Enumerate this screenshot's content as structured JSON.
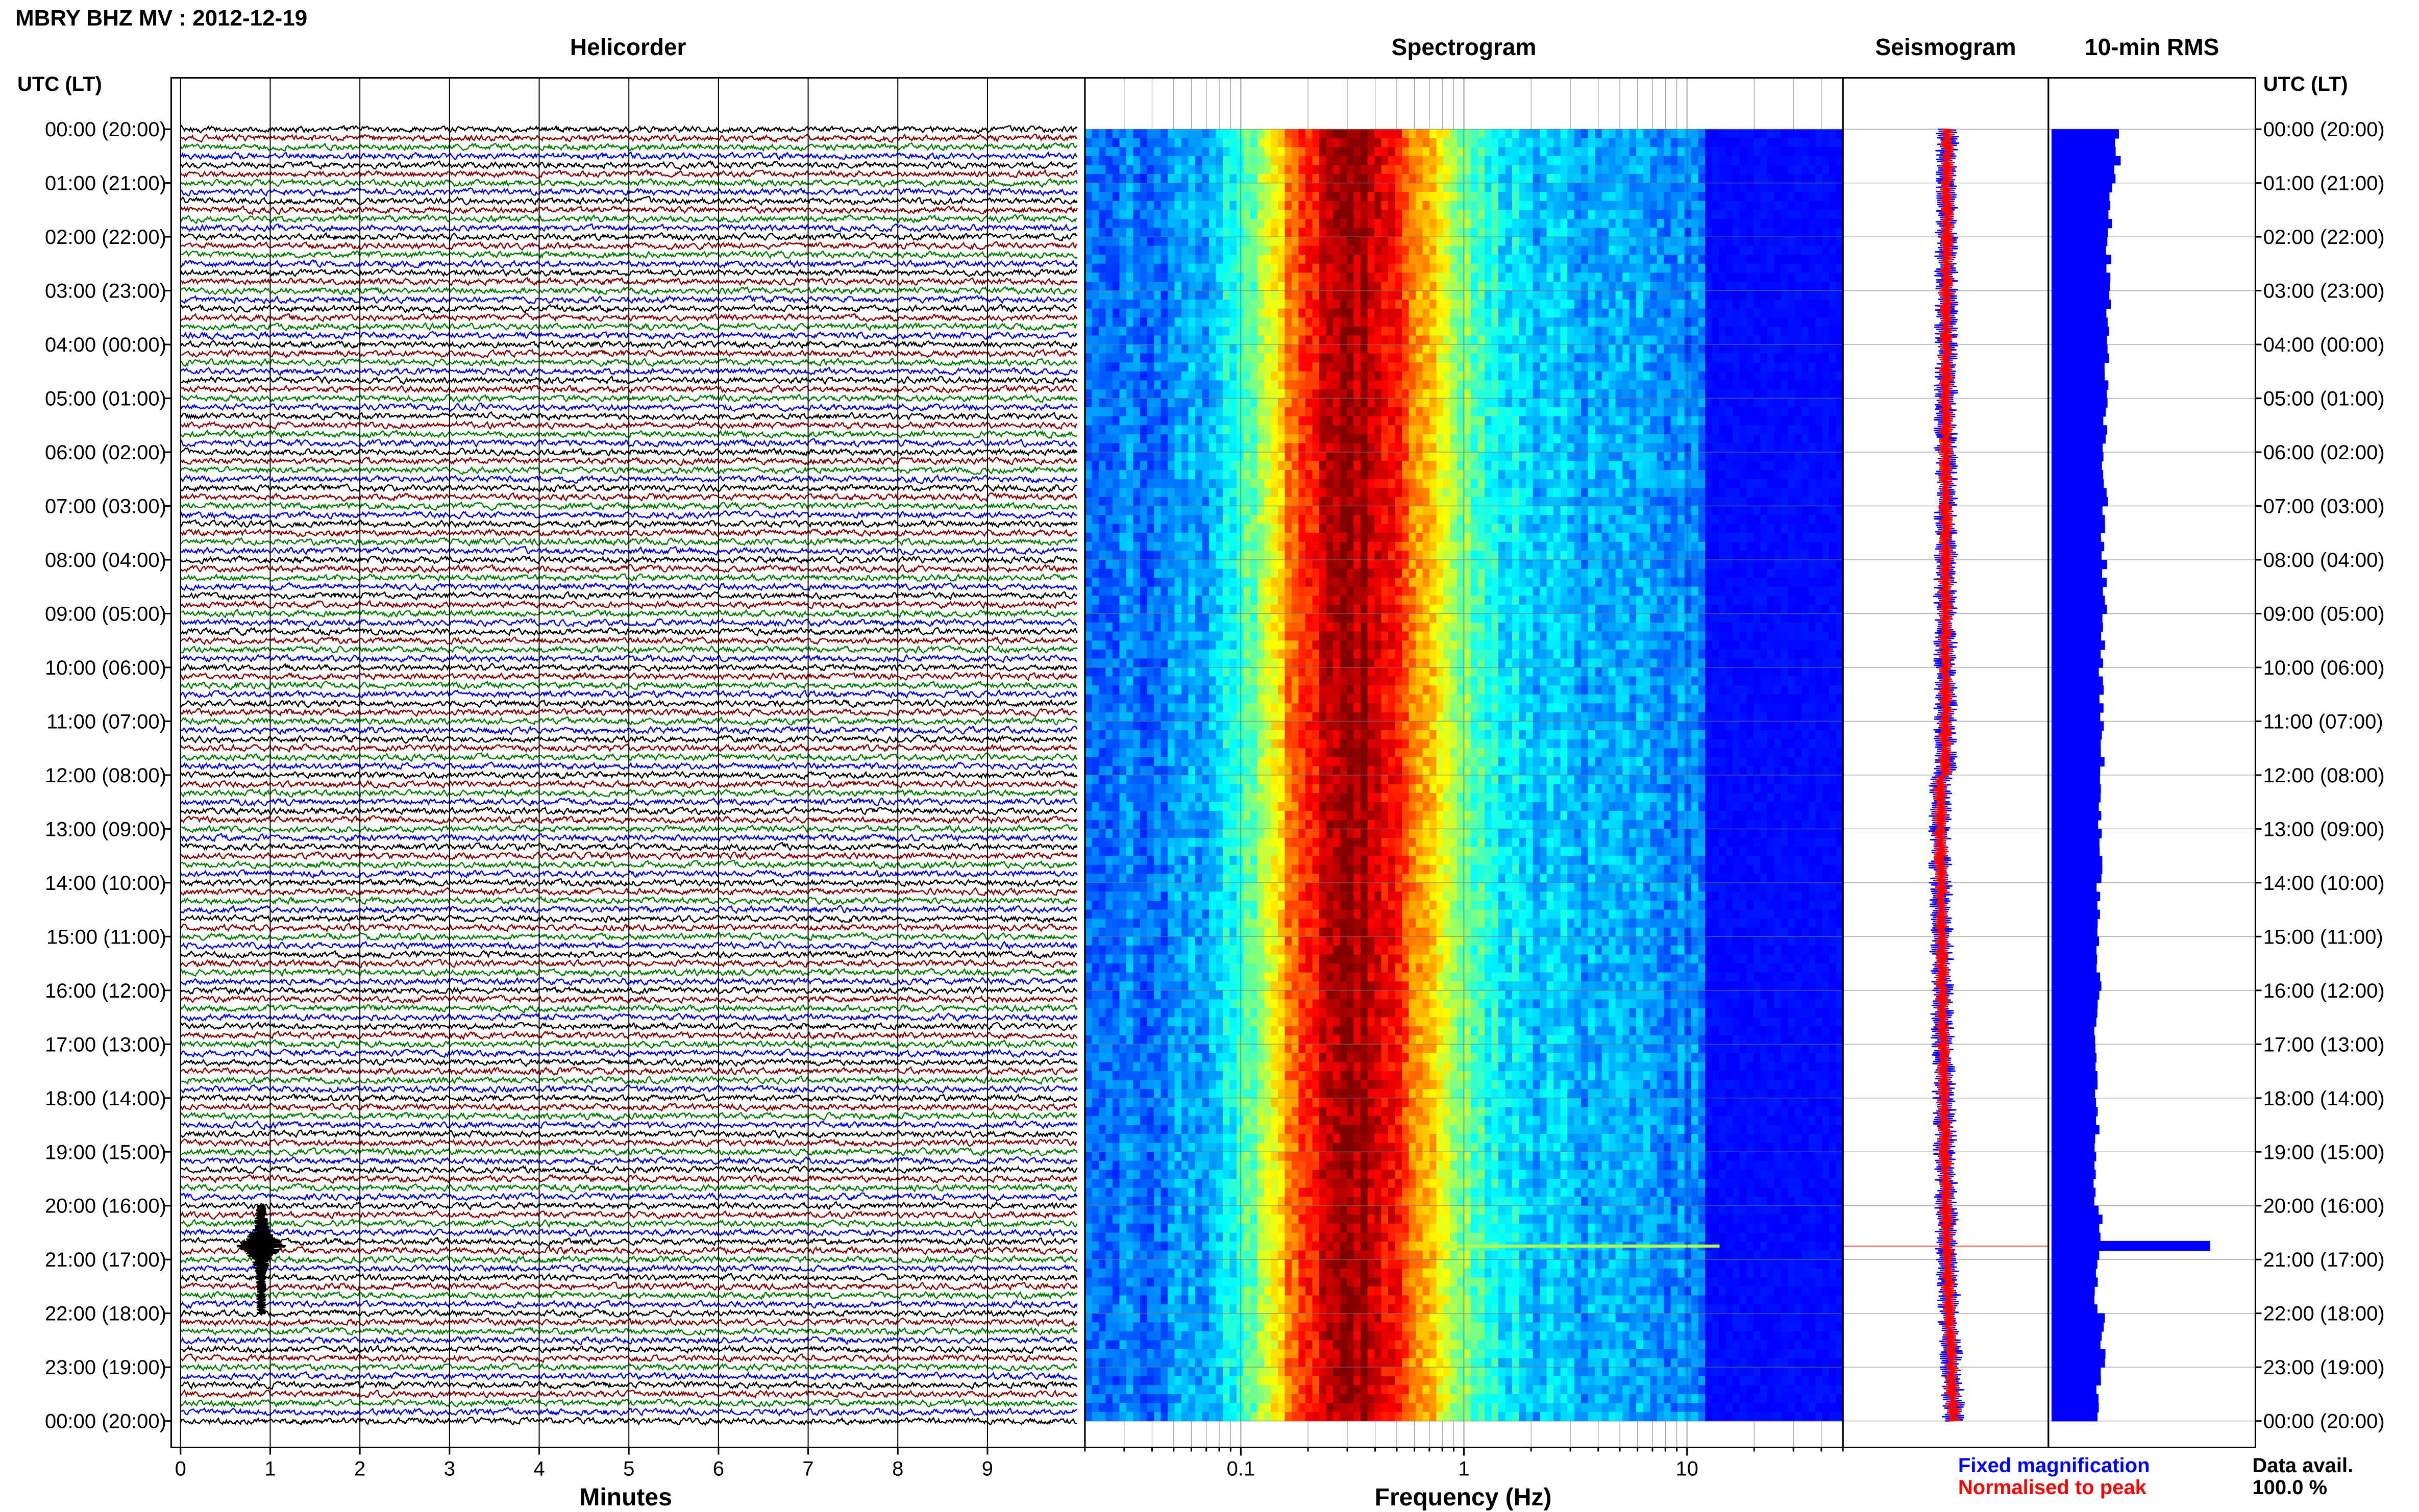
{
  "title": "MBRY BHZ MV : 2012-12-19",
  "panels": {
    "helicorder": "Helicorder",
    "spectrogram": "Spectrogram",
    "seismogram": "Seismogram",
    "rms": "10-min RMS"
  },
  "axis": {
    "time_header_left": "UTC (LT)",
    "time_header_right": "UTC (LT)",
    "minutes_label": "Minutes",
    "frequency_label": "Frequency (Hz)"
  },
  "time_labels": [
    "00:00 (20:00)",
    "01:00 (21:00)",
    "02:00 (22:00)",
    "03:00 (23:00)",
    "04:00 (00:00)",
    "05:00 (01:00)",
    "06:00 (02:00)",
    "07:00 (03:00)",
    "08:00 (04:00)",
    "09:00 (05:00)",
    "10:00 (06:00)",
    "11:00 (07:00)",
    "12:00 (08:00)",
    "13:00 (09:00)",
    "14:00 (10:00)",
    "15:00 (11:00)",
    "16:00 (12:00)",
    "17:00 (13:00)",
    "18:00 (14:00)",
    "19:00 (15:00)",
    "20:00 (16:00)",
    "21:00 (17:00)",
    "22:00 (18:00)",
    "23:00 (19:00)",
    "00:00 (20:00)"
  ],
  "legend": {
    "fixed": "Fixed magnification",
    "normalised": "Normalised to peak",
    "fixed_color": "#0000ff",
    "normalised_color": "#ff0000"
  },
  "data_avail": {
    "label": "Data avail.",
    "value": "100.0 %"
  },
  "chart_data": {
    "type": "helicorder",
    "station": "MBRY BHZ MV",
    "date": "2012-12-19",
    "helicorder": {
      "x_ticks": [
        0,
        1,
        2,
        3,
        4,
        5,
        6,
        7,
        8,
        9
      ],
      "xlim_minutes": [
        0,
        10
      ],
      "rows_per_hour": 6,
      "hours": 24,
      "trace_colors": [
        "#000000",
        "#8b0000",
        "#008000",
        "#0000ff"
      ],
      "event": {
        "hour_start": 20.0,
        "hour_end": 22.0,
        "minute": 0.9,
        "peak_hour": 20.75
      }
    },
    "spectrogram": {
      "x_scale": "log",
      "xlim_hz": [
        0.02,
        50
      ],
      "x_ticks": [
        0.1,
        1,
        10
      ],
      "x_tick_labels": [
        "0.1",
        "1",
        "10"
      ],
      "colormap": "jet",
      "peak_band_hz": [
        0.2,
        0.5
      ],
      "event_hour": 20.75
    },
    "seismogram": {
      "series": [
        {
          "name": "Fixed magnification",
          "color": "#0000ff"
        },
        {
          "name": "Normalised to peak",
          "color": "#ff0000"
        }
      ],
      "event_hour": 20.75
    },
    "rms": {
      "interval_min": 10,
      "values_relative": [
        0.42,
        0.38,
        0.36,
        0.36,
        0.35,
        0.34,
        0.34,
        0.33,
        0.34,
        0.33,
        0.32,
        0.32,
        0.31,
        0.31,
        0.3,
        0.3,
        0.29,
        0.29,
        0.29,
        0.28,
        0.31,
        0.29,
        0.33,
        0.3
      ],
      "spike": {
        "hour": 20.75,
        "value_relative": 1.0
      }
    }
  }
}
